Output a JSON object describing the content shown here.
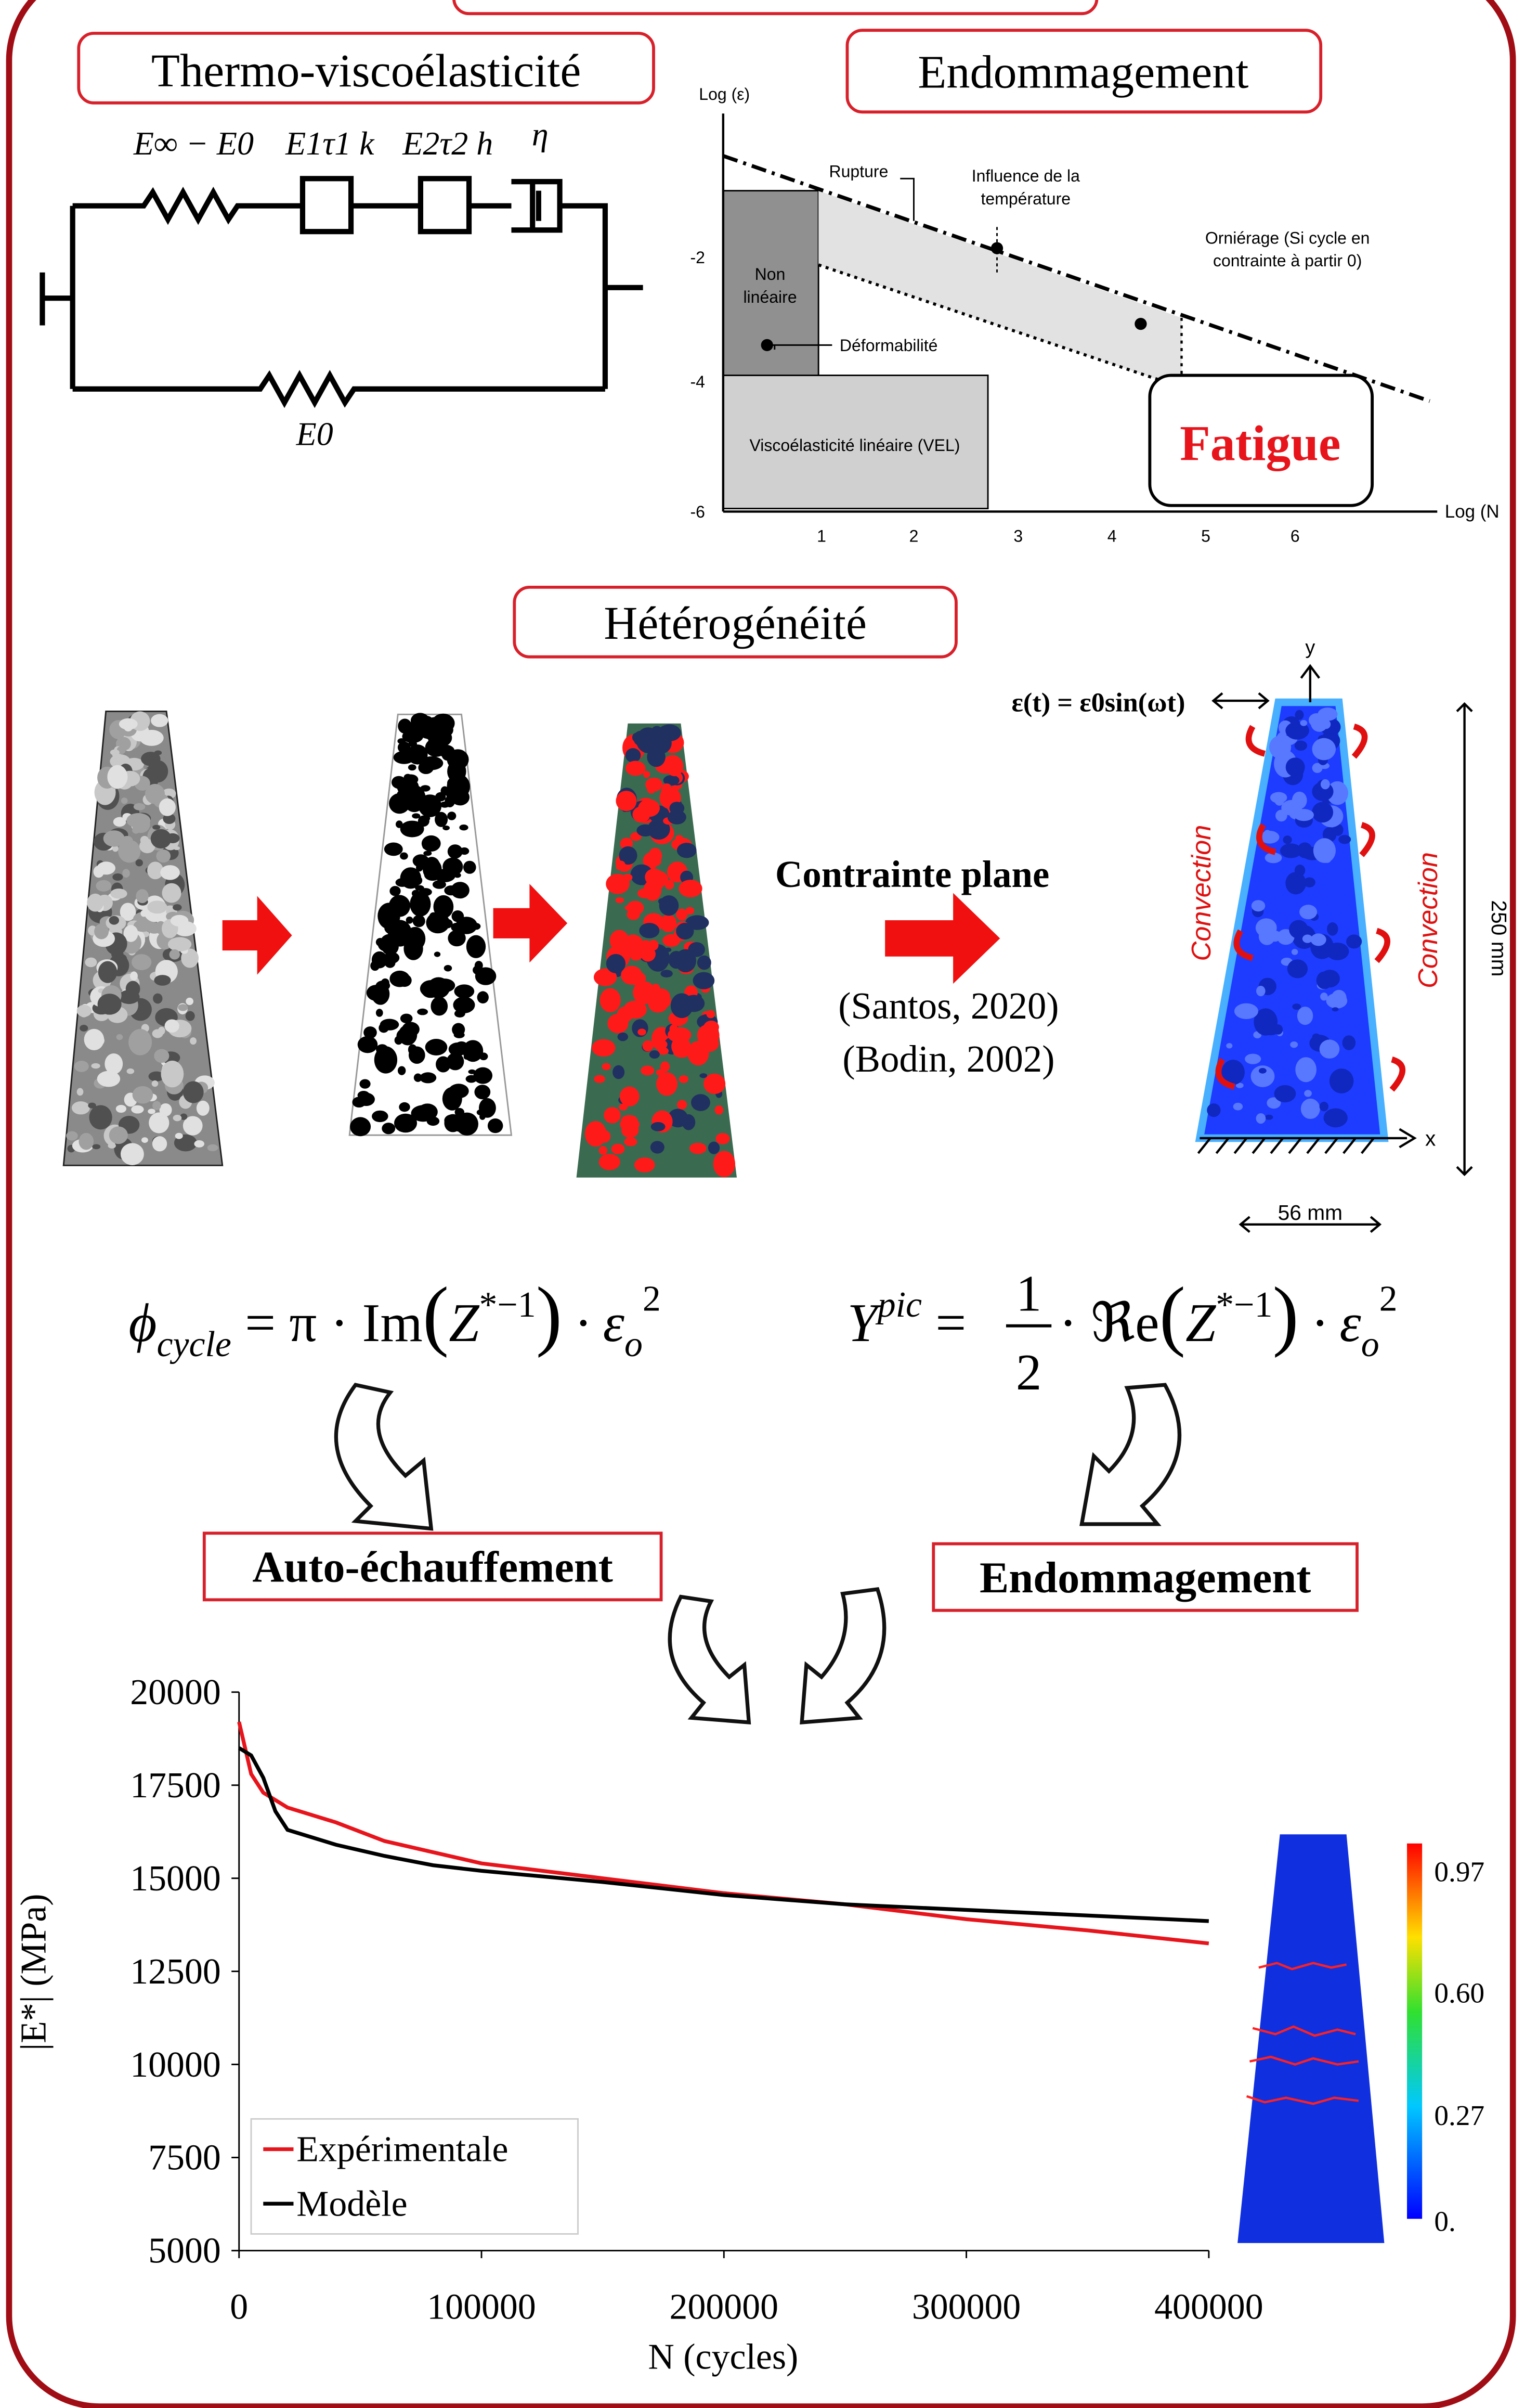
{
  "thermo": {
    "title": "Thermo-viscoélasticité",
    "labels": [
      "E∞ − E0",
      "E1τ1 k",
      "E2τ2 h",
      "η",
      "E0"
    ]
  },
  "damage_diagram": {
    "title": "Endommagement",
    "y_label": "Log (ε)",
    "x_label": "Log (N",
    "y_ticks": [
      "-2",
      "-4",
      "-6"
    ],
    "x_ticks": [
      "1",
      "2",
      "3",
      "4",
      "5",
      "6"
    ],
    "annotations": [
      "Rupture",
      "Influence de la",
      "température",
      "Orniérage (Si cycle en",
      "contrainte à partir 0)",
      "Non",
      "linéaire",
      "Déformabilité",
      "Viscoélasticité linéaire (VEL)"
    ],
    "fatigue": "Fatigue"
  },
  "heterogeneity": {
    "title": "Hétérogénéité",
    "method": "Contrainte plane",
    "refs": [
      "(Santos, 2020)",
      "(Bodin, 2002)"
    ],
    "loading": "ε(t) = ε0sin(ωt)",
    "axis_y": "y",
    "axis_x": "x",
    "height": "250 mm",
    "width": "56 mm",
    "convection": [
      "Convection",
      "Convection"
    ]
  },
  "equations": [
    [
      "ϕ",
      "cycle",
      " = π · Im",
      "(",
      "Z",
      "*−1",
      ")",
      " · ε",
      "o",
      "2"
    ],
    [
      "Y",
      "pic",
      " = ",
      "1",
      "2",
      " · ℜe",
      "(",
      "Z",
      "*−1",
      ")",
      " · ε",
      "o",
      "2"
    ]
  ],
  "outputs": [
    "Auto-échauffement",
    "Endommagement"
  ],
  "colorbar": [
    "0.97",
    "0.60",
    "0.27",
    "0."
  ],
  "chart_data": {
    "type": "line",
    "x_label": "N (cycles)",
    "y_label": "|E*| (MPa)",
    "x": [
      0,
      5000,
      10000,
      15000,
      20000,
      40000,
      60000,
      80000,
      100000,
      150000,
      200000,
      250000,
      300000,
      350000,
      400000
    ],
    "series": [
      {
        "name": "Expérimentale",
        "color": "#e8141c",
        "values": [
          19200,
          17800,
          17300,
          17100,
          16900,
          16500,
          16000,
          15700,
          15400,
          15000,
          14600,
          14300,
          13900,
          13600,
          13250
        ]
      },
      {
        "name": "Modèle",
        "color": "#000000",
        "values": [
          18500,
          18300,
          17700,
          16800,
          16300,
          15900,
          15600,
          15350,
          15200,
          14900,
          14550,
          14300,
          14150,
          14000,
          13850
        ]
      }
    ],
    "xlim": [
      0,
      400000
    ],
    "ylim": [
      5000,
      20000
    ],
    "xticks": [
      0,
      100000,
      200000,
      300000,
      400000
    ],
    "yticks": [
      5000,
      7500,
      10000,
      12500,
      15000,
      17500,
      20000
    ],
    "legend": "lower left"
  }
}
